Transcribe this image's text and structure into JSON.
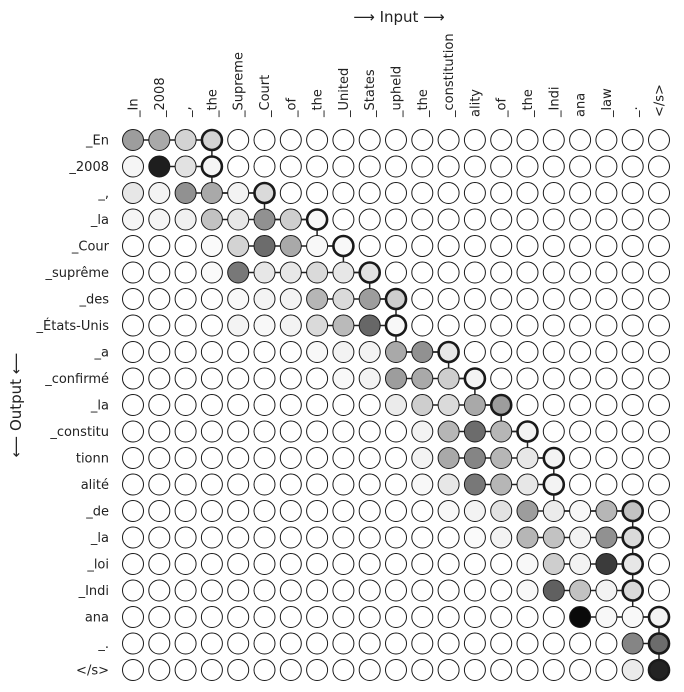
{
  "chart_data": {
    "type": "heatmap",
    "title": "",
    "xlabel": "⟶ Input ⟶",
    "ylabel": "⟵ Output ⟵",
    "value_range": [
      0,
      1
    ],
    "colormap": "white-to-black (higher value = darker)",
    "x_tokens": [
      "_In",
      "_2008",
      "_,",
      "_the",
      "_Supreme",
      "_Court",
      "_of",
      "_the",
      "_United",
      "_States",
      "_upheld",
      "_the",
      "_constitution",
      "ality",
      "_of",
      "_the",
      "_Indi",
      "ana",
      "_law",
      "_.",
      "</s>"
    ],
    "y_tokens": [
      "_En",
      "_2008",
      "_,",
      "_la",
      "_Cour",
      "_suprême",
      "_des",
      "_États-Unis",
      "_a",
      "_confirmé",
      "_la",
      "_constitu",
      "tionn",
      "alité",
      "_de",
      "_la",
      "_loi",
      "_Indi",
      "ana",
      "_.",
      "</s>"
    ],
    "alignment": [
      3,
      3,
      5,
      7,
      8,
      9,
      10,
      10,
      12,
      13,
      14,
      15,
      16,
      16,
      19,
      19,
      19,
      19,
      20,
      20,
      20
    ],
    "weights": [
      [
        0.4,
        0.35,
        0.18,
        0.18,
        0,
        0,
        0,
        0,
        0,
        0,
        0,
        0,
        0,
        0,
        0,
        0,
        0,
        0,
        0,
        0,
        0
      ],
      [
        0.04,
        0.92,
        0.12,
        0.04,
        0,
        0,
        0,
        0,
        0,
        0,
        0,
        0,
        0,
        0,
        0,
        0,
        0,
        0,
        0,
        0,
        0
      ],
      [
        0.1,
        0.05,
        0.45,
        0.35,
        0.05,
        0.15,
        0,
        0,
        0,
        0,
        0,
        0,
        0,
        0,
        0,
        0,
        0,
        0,
        0,
        0,
        0
      ],
      [
        0.04,
        0.04,
        0.06,
        0.25,
        0.1,
        0.45,
        0.2,
        0.03,
        0,
        0,
        0,
        0,
        0,
        0,
        0,
        0,
        0,
        0,
        0,
        0,
        0
      ],
      [
        0,
        0,
        0,
        0.02,
        0.18,
        0.6,
        0.35,
        0.03,
        0.03,
        0,
        0,
        0,
        0,
        0,
        0,
        0,
        0,
        0,
        0,
        0,
        0
      ],
      [
        0,
        0,
        0,
        0.02,
        0.55,
        0.1,
        0.1,
        0.15,
        0.1,
        0.12,
        0,
        0,
        0,
        0,
        0,
        0,
        0,
        0,
        0,
        0,
        0
      ],
      [
        0,
        0,
        0,
        0,
        0.03,
        0.05,
        0.05,
        0.3,
        0.15,
        0.4,
        0.2,
        0,
        0,
        0,
        0,
        0,
        0,
        0,
        0,
        0,
        0
      ],
      [
        0,
        0,
        0,
        0,
        0.05,
        0.03,
        0.05,
        0.15,
        0.28,
        0.62,
        0.03,
        0,
        0,
        0,
        0,
        0,
        0,
        0,
        0,
        0,
        0
      ],
      [
        0,
        0,
        0,
        0,
        0,
        0,
        0,
        0.03,
        0.05,
        0.05,
        0.35,
        0.45,
        0.1,
        0,
        0,
        0,
        0,
        0,
        0,
        0,
        0
      ],
      [
        0,
        0,
        0,
        0,
        0,
        0,
        0,
        0,
        0.03,
        0.05,
        0.4,
        0.35,
        0.2,
        0.05,
        0,
        0,
        0,
        0,
        0,
        0,
        0
      ],
      [
        0,
        0,
        0,
        0,
        0,
        0,
        0,
        0,
        0,
        0,
        0.08,
        0.2,
        0.15,
        0.35,
        0.4,
        0,
        0,
        0,
        0,
        0,
        0
      ],
      [
        0,
        0,
        0,
        0,
        0,
        0,
        0,
        0,
        0,
        0,
        0,
        0.05,
        0.3,
        0.6,
        0.3,
        0.05,
        0,
        0,
        0,
        0,
        0
      ],
      [
        0,
        0,
        0,
        0,
        0,
        0,
        0,
        0,
        0,
        0,
        0,
        0.05,
        0.35,
        0.5,
        0.3,
        0.1,
        0.05,
        0,
        0,
        0,
        0
      ],
      [
        0,
        0,
        0,
        0,
        0,
        0,
        0,
        0,
        0,
        0,
        0,
        0.03,
        0.1,
        0.55,
        0.3,
        0.1,
        0.05,
        0,
        0,
        0,
        0
      ],
      [
        0,
        0,
        0,
        0,
        0,
        0,
        0,
        0,
        0,
        0,
        0,
        0,
        0.03,
        0.05,
        0.12,
        0.4,
        0.08,
        0.03,
        0.3,
        0.25,
        0
      ],
      [
        0,
        0,
        0,
        0,
        0,
        0,
        0,
        0,
        0,
        0,
        0,
        0,
        0,
        0.02,
        0.05,
        0.3,
        0.25,
        0.05,
        0.45,
        0.15,
        0
      ],
      [
        0,
        0,
        0,
        0,
        0,
        0,
        0,
        0,
        0,
        0,
        0,
        0,
        0,
        0,
        0,
        0.03,
        0.2,
        0.05,
        0.8,
        0.1,
        0
      ],
      [
        0,
        0,
        0,
        0,
        0,
        0,
        0,
        0,
        0,
        0,
        0,
        0,
        0,
        0,
        0,
        0.03,
        0.65,
        0.25,
        0.05,
        0.15,
        0
      ],
      [
        0,
        0,
        0,
        0,
        0,
        0,
        0,
        0,
        0,
        0,
        0,
        0,
        0,
        0,
        0,
        0,
        0,
        1.0,
        0.03,
        0.03,
        0.05
      ],
      [
        0,
        0,
        0,
        0,
        0,
        0,
        0,
        0,
        0,
        0,
        0,
        0,
        0,
        0,
        0,
        0,
        0,
        0,
        0,
        0.5,
        0.6
      ],
      [
        0,
        0,
        0,
        0,
        0,
        0,
        0,
        0,
        0,
        0,
        0,
        0,
        0,
        0,
        0,
        0,
        0,
        0,
        0,
        0.08,
        0.9
      ]
    ]
  }
}
